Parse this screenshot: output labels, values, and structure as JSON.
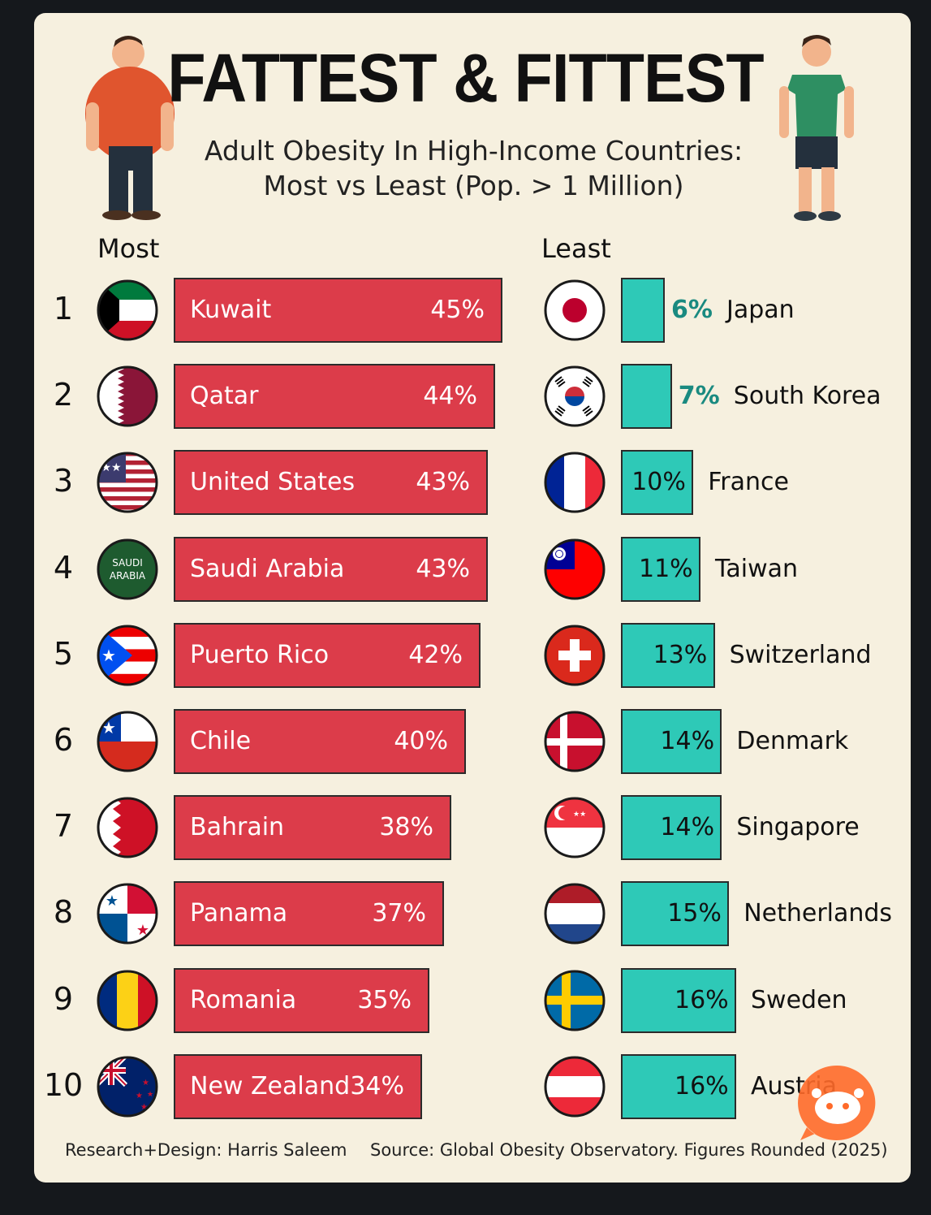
{
  "title": "FATTEST & FITTEST",
  "subtitle_line1": "Adult Obesity In High-Income Countries:",
  "subtitle_line2": "Most vs Least (Pop. > 1 Million)",
  "most_label": "Most",
  "least_label": "Least",
  "footer_left": "Research+Design: Harris Saleem",
  "footer_right": "Source: Global Obesity Observatory. Figures Rounded (2025)",
  "colors": {
    "most_bar": "#dc3c4a",
    "least_bar": "#2ec9b7",
    "background": "#f6f0df"
  },
  "most": [
    {
      "rank": "1",
      "country": "Kuwait",
      "value": 45,
      "label": "45%",
      "flag": "kuwait-flag-icon"
    },
    {
      "rank": "2",
      "country": "Qatar",
      "value": 44,
      "label": "44%",
      "flag": "qatar-flag-icon"
    },
    {
      "rank": "3",
      "country": "United States",
      "value": 43,
      "label": "43%",
      "flag": "usa-flag-icon"
    },
    {
      "rank": "4",
      "country": "Saudi Arabia",
      "value": 43,
      "label": "43%",
      "flag": "saudi-flag-icon"
    },
    {
      "rank": "5",
      "country": "Puerto Rico",
      "value": 42,
      "label": "42%",
      "flag": "puerto-rico-flag-icon"
    },
    {
      "rank": "6",
      "country": "Chile",
      "value": 40,
      "label": "40%",
      "flag": "chile-flag-icon"
    },
    {
      "rank": "7",
      "country": "Bahrain",
      "value": 38,
      "label": "38%",
      "flag": "bahrain-flag-icon"
    },
    {
      "rank": "8",
      "country": "Panama",
      "value": 37,
      "label": "37%",
      "flag": "panama-flag-icon"
    },
    {
      "rank": "9",
      "country": "Romania",
      "value": 35,
      "label": "35%",
      "flag": "romania-flag-icon"
    },
    {
      "rank": "10",
      "country": "New Zealand",
      "value": 34,
      "label": "34%",
      "flag": "new-zealand-flag-icon"
    }
  ],
  "least": [
    {
      "country": "Japan",
      "value": 6,
      "label": "6%",
      "flag": "japan-flag-icon"
    },
    {
      "country": "South Korea",
      "value": 7,
      "label": "7%",
      "flag": "south-korea-flag-icon"
    },
    {
      "country": "France",
      "value": 10,
      "label": "10%",
      "flag": "france-flag-icon"
    },
    {
      "country": "Taiwan",
      "value": 11,
      "label": "11%",
      "flag": "taiwan-flag-icon"
    },
    {
      "country": "Switzerland",
      "value": 13,
      "label": "13%",
      "flag": "switzerland-flag-icon"
    },
    {
      "country": "Denmark",
      "value": 14,
      "label": "14%",
      "flag": "denmark-flag-icon"
    },
    {
      "country": "Singapore",
      "value": 14,
      "label": "14%",
      "flag": "singapore-flag-icon"
    },
    {
      "country": "Netherlands",
      "value": 15,
      "label": "15%",
      "flag": "netherlands-flag-icon"
    },
    {
      "country": "Sweden",
      "value": 16,
      "label": "16%",
      "flag": "sweden-flag-icon"
    },
    {
      "country": "Austria",
      "value": 16,
      "label": "16%",
      "flag": "austria-flag-icon"
    }
  ],
  "saudi_flag_text_1": "SAUDI",
  "saudi_flag_text_2": "ARABIA",
  "chart_data": {
    "type": "bar",
    "title": "FATTEST & FITTEST",
    "subtitle": "Adult Obesity In High-Income Countries: Most vs Least (Pop. > 1 Million)",
    "series": [
      {
        "name": "Most",
        "categories": [
          "Kuwait",
          "Qatar",
          "United States",
          "Saudi Arabia",
          "Puerto Rico",
          "Chile",
          "Bahrain",
          "Panama",
          "Romania",
          "New Zealand"
        ],
        "values": [
          45,
          44,
          43,
          43,
          42,
          40,
          38,
          37,
          35,
          34
        ]
      },
      {
        "name": "Least",
        "categories": [
          "Japan",
          "South Korea",
          "France",
          "Taiwan",
          "Switzerland",
          "Denmark",
          "Singapore",
          "Netherlands",
          "Sweden",
          "Austria"
        ],
        "values": [
          6,
          7,
          10,
          11,
          13,
          14,
          14,
          15,
          16,
          16
        ]
      }
    ],
    "unit": "%"
  }
}
